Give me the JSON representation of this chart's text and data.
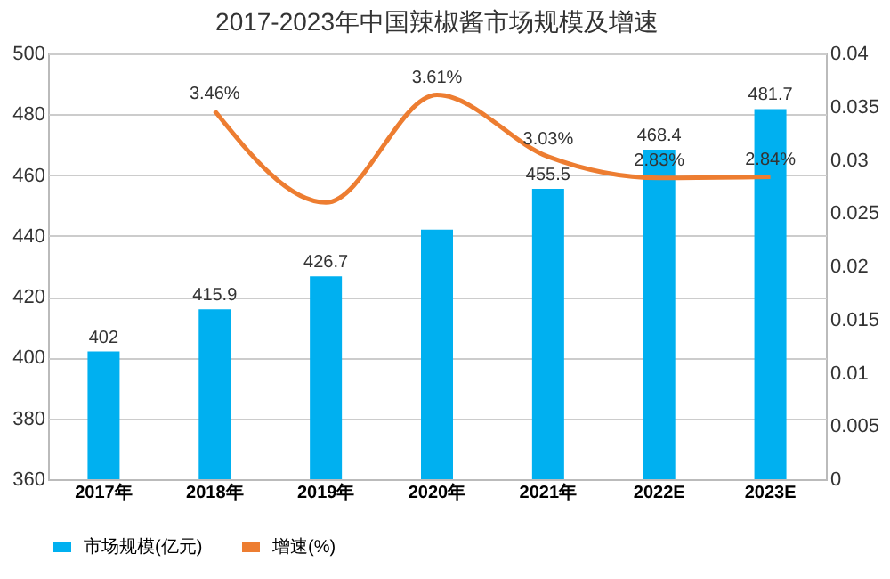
{
  "chart_data": {
    "type": "bar",
    "title": "2017-2023年中国辣椒酱市场规模及增速",
    "categories": [
      "2017年",
      "2018年",
      "2019年",
      "2020年",
      "2021年",
      "2022E",
      "2023E"
    ],
    "series": [
      {
        "name": "市场规模(亿元)",
        "color": "#00b0f0",
        "values": [
          402,
          415.9,
          426.7,
          442.1,
          455.5,
          468.4,
          481.7
        ],
        "value_labels": [
          "402",
          "415.9",
          "426.7",
          null,
          "455.5",
          "468.4",
          "481.7"
        ]
      },
      {
        "name": "增速(%)",
        "type": "line",
        "axis": "y2",
        "color": "#ed7d31",
        "values": [
          null,
          0.0346,
          0.026,
          0.0361,
          0.0303,
          0.0283,
          0.0284
        ],
        "value_labels": [
          null,
          "3.46%",
          null,
          "3.61%",
          "3.03%",
          "2.83%",
          "2.84%"
        ]
      }
    ],
    "ylim": [
      360,
      500
    ],
    "yticks": [
      360,
      380,
      400,
      420,
      440,
      460,
      480,
      500
    ],
    "y2lim": [
      0,
      0.04
    ],
    "y2ticks": [
      0,
      0.005,
      0.01,
      0.015,
      0.02,
      0.025,
      0.03,
      0.035,
      0.04
    ],
    "grid": "y",
    "legend": "bottom"
  }
}
